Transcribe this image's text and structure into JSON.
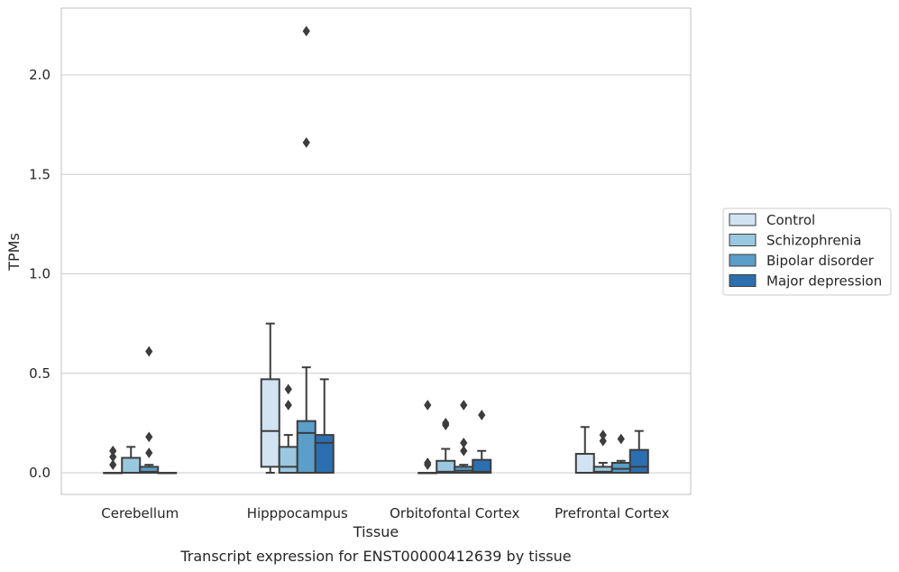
{
  "caption": "Transcript expression for ENST00000412639 by tissue",
  "chart_data": {
    "type": "boxplot",
    "xlabel": "Tissue",
    "ylabel": "TPMs",
    "ylim": [
      -0.11,
      2.35
    ],
    "yticks": [
      0.0,
      0.5,
      1.0,
      1.5,
      2.0
    ],
    "ytick_labels": [
      "0.0",
      "0.5",
      "1.0",
      "1.5",
      "2.0"
    ],
    "grid": "horizontal",
    "legend_position": "right",
    "categories": [
      "Cerebellum",
      "Hipppocampus",
      "Orbitofontal Cortex",
      "Prefrontal Cortex"
    ],
    "series": [
      {
        "name": "Control",
        "color": "#d2e3f3",
        "boxes": [
          {
            "min": 0,
            "q1": 0,
            "median": 0,
            "q3": 0,
            "max": 0,
            "outliers": [
              0.04,
              0.08,
              0.11
            ]
          },
          {
            "min": 0.0,
            "q1": 0.03,
            "median": 0.21,
            "q3": 0.47,
            "max": 0.75,
            "outliers": []
          },
          {
            "min": 0,
            "q1": 0,
            "median": 0,
            "q3": 0,
            "max": 0,
            "outliers": [
              0.04,
              0.05,
              0.34
            ]
          },
          {
            "min": 0,
            "q1": 0,
            "median": 0,
            "q3": 0.095,
            "max": 0.23,
            "outliers": []
          }
        ]
      },
      {
        "name": "Schizophrenia",
        "color": "#9ac8e0",
        "boxes": [
          {
            "min": 0,
            "q1": 0,
            "median": 0,
            "q3": 0.075,
            "max": 0.13,
            "outliers": []
          },
          {
            "min": 0,
            "q1": 0,
            "median": 0.03,
            "q3": 0.13,
            "max": 0.19,
            "outliers": [
              0.34,
              0.42
            ]
          },
          {
            "min": 0,
            "q1": 0,
            "median": 0.005,
            "q3": 0.06,
            "max": 0.12,
            "outliers": [
              0.24,
              0.25
            ]
          },
          {
            "min": 0,
            "q1": 0,
            "median": 0.005,
            "q3": 0.03,
            "max": 0.05,
            "outliers": [
              0.16,
              0.19
            ]
          }
        ]
      },
      {
        "name": "Bipolar disorder",
        "color": "#5a9ec9",
        "boxes": [
          {
            "min": 0,
            "q1": 0,
            "median": 0.005,
            "q3": 0.03,
            "max": 0.04,
            "outliers": [
              0.1,
              0.18,
              0.61
            ]
          },
          {
            "min": 0,
            "q1": 0,
            "median": 0.2,
            "q3": 0.26,
            "max": 0.53,
            "outliers": [
              1.66,
              2.22
            ]
          },
          {
            "min": 0,
            "q1": 0,
            "median": 0.01,
            "q3": 0.03,
            "max": 0.04,
            "outliers": [
              0.11,
              0.15,
              0.34
            ]
          },
          {
            "min": 0,
            "q1": 0,
            "median": 0.02,
            "q3": 0.05,
            "max": 0.06,
            "outliers": [
              0.17
            ]
          }
        ]
      },
      {
        "name": "Major depression",
        "color": "#2c6fb1",
        "boxes": [
          {
            "min": 0,
            "q1": 0,
            "median": 0,
            "q3": 0,
            "max": 0,
            "outliers": []
          },
          {
            "min": 0,
            "q1": 0,
            "median": 0.15,
            "q3": 0.19,
            "max": 0.47,
            "outliers": []
          },
          {
            "min": 0,
            "q1": 0,
            "median": 0.005,
            "q3": 0.065,
            "max": 0.11,
            "outliers": [
              0.29
            ]
          },
          {
            "min": 0,
            "q1": 0,
            "median": 0.03,
            "q3": 0.115,
            "max": 0.21,
            "outliers": []
          }
        ]
      }
    ]
  }
}
